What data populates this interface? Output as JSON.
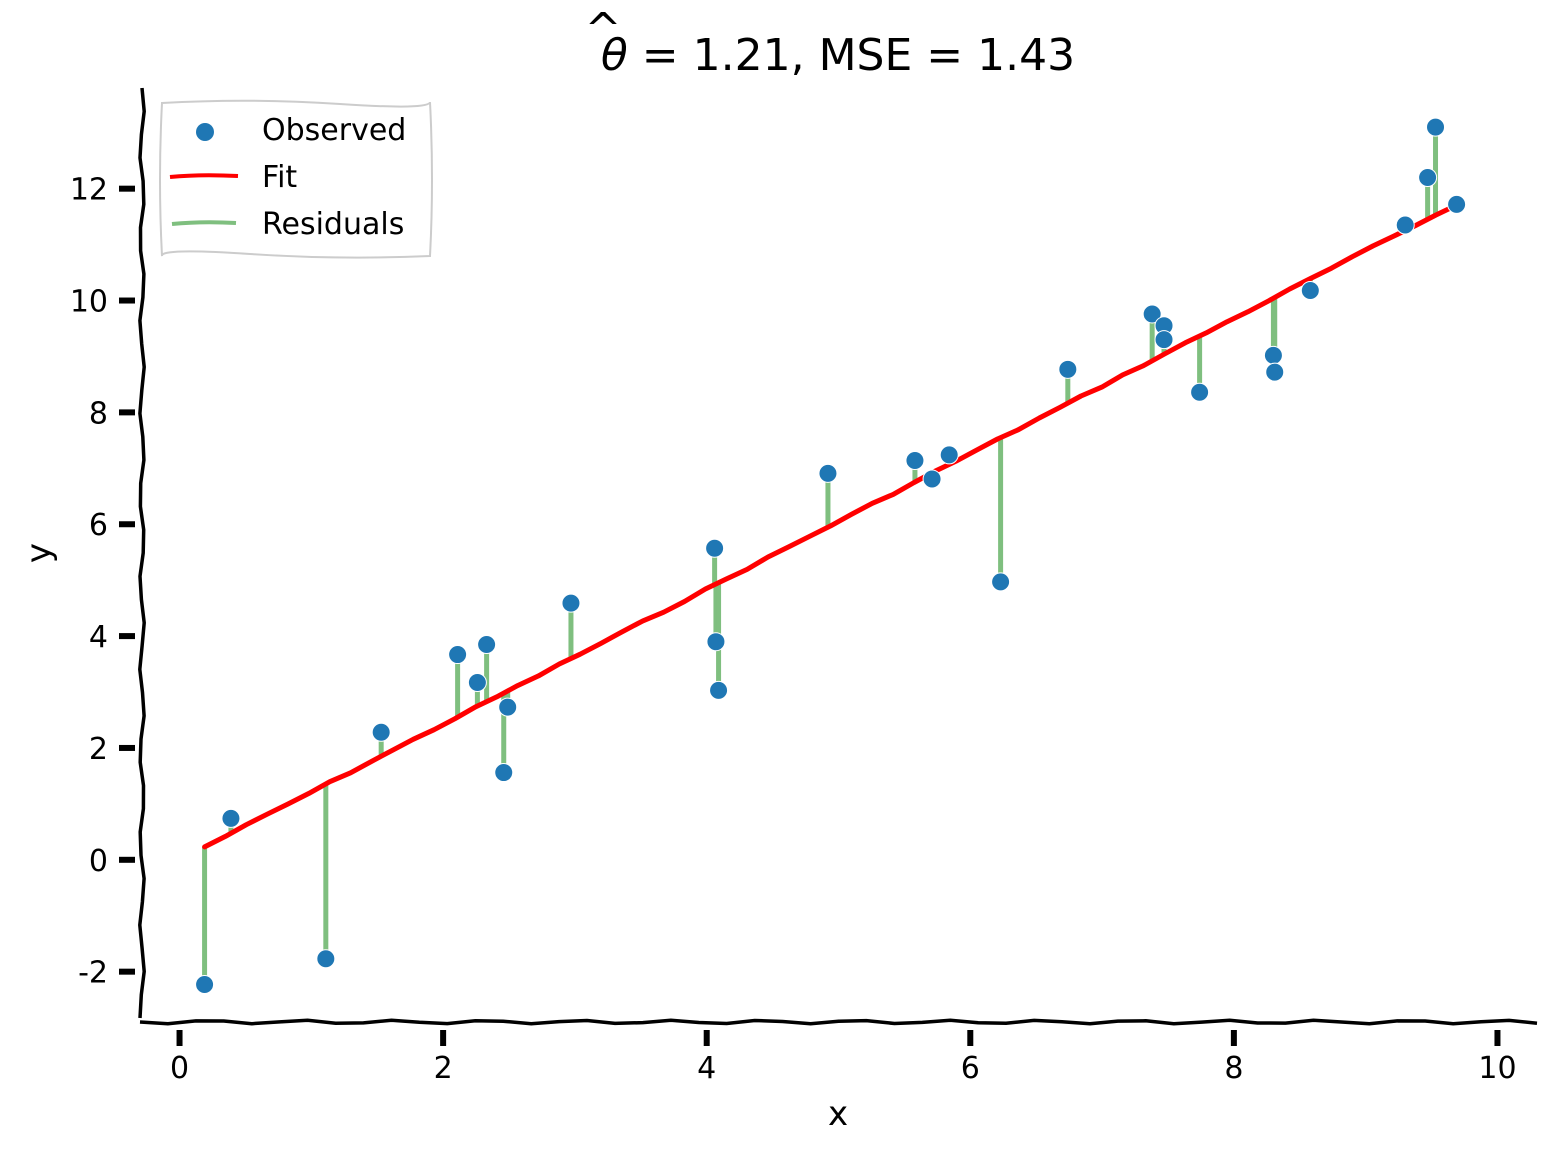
{
  "chart_data": {
    "type": "scatter",
    "title_theta": "θ",
    "title_hat": "^",
    "title_rest": " = 1.21, MSE = 1.43",
    "xlabel": "x",
    "ylabel": "y",
    "xlim": [
      -0.3,
      10.3
    ],
    "ylim": [
      -2.9,
      13.8
    ],
    "xticks": [
      0,
      2,
      4,
      6,
      8,
      10
    ],
    "yticks": [
      -2,
      0,
      2,
      4,
      6,
      8,
      10,
      12
    ],
    "xtick_labels": [
      "0",
      "2",
      "4",
      "6",
      "8",
      "10"
    ],
    "ytick_labels": [
      "-2",
      "0",
      "2",
      "4",
      "6",
      "8",
      "10",
      "12"
    ],
    "grid": false,
    "legend_position": "upper-left",
    "legend": [
      {
        "key": "observed",
        "label": "Observed"
      },
      {
        "key": "fit",
        "label": "Fit"
      },
      {
        "key": "residuals",
        "label": "Residuals"
      }
    ],
    "colors": {
      "observed": "#1f77b4",
      "fit": "#ff0000",
      "residuals": "#7fbf7f"
    },
    "theta_hat": 1.21,
    "series": [
      {
        "name": "Observed",
        "points": [
          {
            "x": 0.19,
            "y": -2.23
          },
          {
            "x": 0.39,
            "y": 0.74
          },
          {
            "x": 1.11,
            "y": -1.77
          },
          {
            "x": 1.53,
            "y": 2.28
          },
          {
            "x": 2.11,
            "y": 3.67
          },
          {
            "x": 2.26,
            "y": 3.17
          },
          {
            "x": 2.33,
            "y": 3.85
          },
          {
            "x": 2.46,
            "y": 1.56
          },
          {
            "x": 2.49,
            "y": 2.73
          },
          {
            "x": 2.97,
            "y": 4.59
          },
          {
            "x": 4.06,
            "y": 5.57
          },
          {
            "x": 4.07,
            "y": 3.9
          },
          {
            "x": 4.09,
            "y": 3.03
          },
          {
            "x": 4.92,
            "y": 6.91
          },
          {
            "x": 5.58,
            "y": 7.14
          },
          {
            "x": 5.71,
            "y": 6.81
          },
          {
            "x": 5.84,
            "y": 7.24
          },
          {
            "x": 6.23,
            "y": 4.97
          },
          {
            "x": 6.74,
            "y": 8.77
          },
          {
            "x": 7.38,
            "y": 9.76
          },
          {
            "x": 7.47,
            "y": 9.55
          },
          {
            "x": 7.47,
            "y": 9.3
          },
          {
            "x": 7.74,
            "y": 8.36
          },
          {
            "x": 8.3,
            "y": 9.02
          },
          {
            "x": 8.31,
            "y": 8.72
          },
          {
            "x": 8.58,
            "y": 10.18
          },
          {
            "x": 9.3,
            "y": 11.35
          },
          {
            "x": 9.47,
            "y": 12.2
          },
          {
            "x": 9.53,
            "y": 13.1
          },
          {
            "x": 9.69,
            "y": 11.72
          }
        ]
      }
    ]
  }
}
